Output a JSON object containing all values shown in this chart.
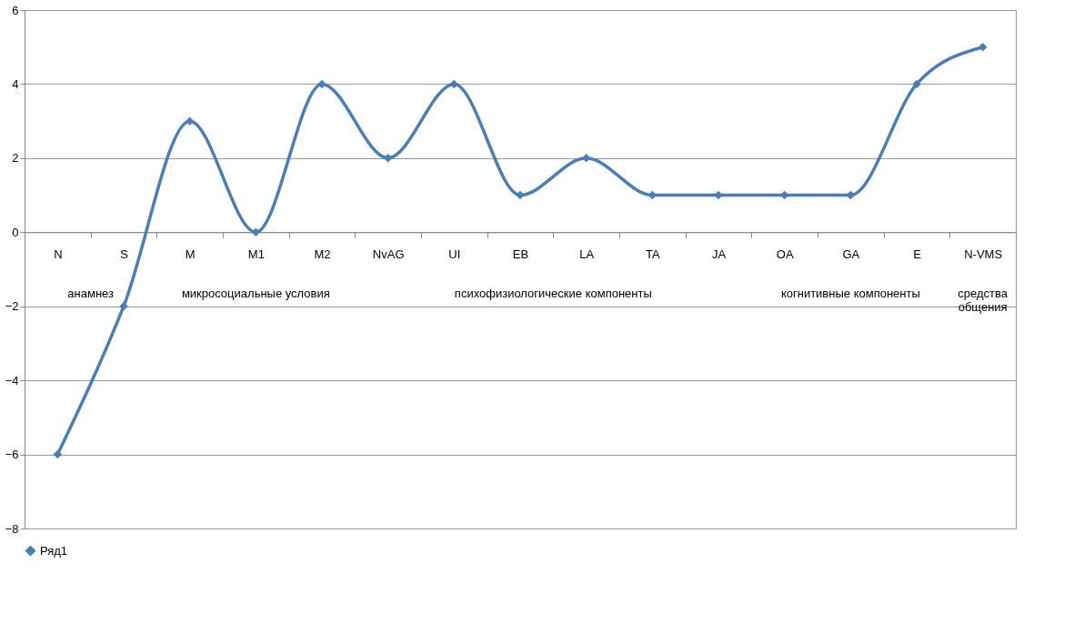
{
  "chart_data": {
    "type": "line",
    "categories": [
      "N",
      "S",
      "M",
      "M1",
      "M2",
      "NvAG",
      "UI",
      "EB",
      "LA",
      "TA",
      "JA",
      "OA",
      "GA",
      "E",
      "N-VMS"
    ],
    "series": [
      {
        "name": "Ряд1",
        "color": "#4a7ebb",
        "values": [
          -6,
          -2,
          3,
          0,
          4,
          2,
          4,
          1,
          2,
          1,
          1,
          1,
          1,
          4,
          5
        ]
      }
    ],
    "ylim": [
      -8,
      6
    ],
    "yticks": [
      -8,
      -6,
      -4,
      -2,
      0,
      2,
      4,
      6
    ],
    "grid": "y",
    "legend": "bottom",
    "marker": "diamond",
    "line_style": "solid",
    "annotations": [
      "анамнез",
      "микросоциальные условия",
      "психофизиологические компоненты",
      "когнитивные компоненты",
      "средства\nобщения"
    ]
  }
}
